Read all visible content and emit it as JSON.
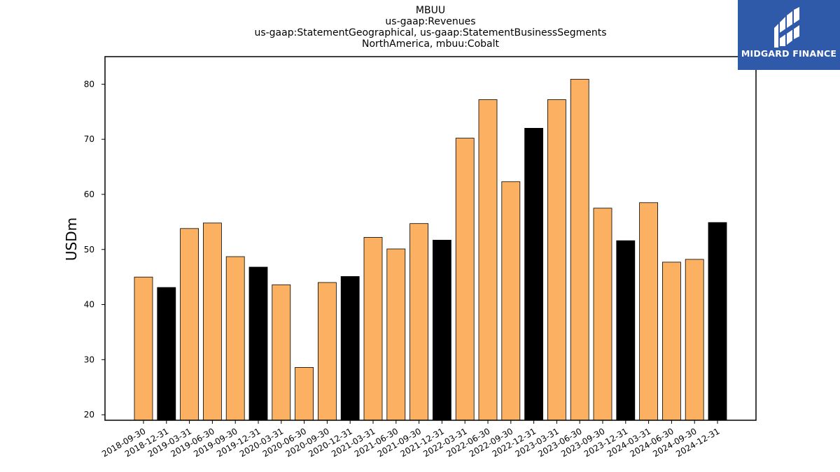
{
  "chart_data": {
    "type": "bar",
    "title_lines": [
      "MBUU",
      "us-gaap:Revenues",
      "us-gaap:StatementGeographical, us-gaap:StatementBusinessSegments",
      "NorthAmerica, mbuu:Cobalt"
    ],
    "ylabel": "USDm",
    "xlabel": "",
    "ylim": [
      19,
      85
    ],
    "yticks": [
      20,
      30,
      40,
      50,
      60,
      70,
      80
    ],
    "categories": [
      "2018-09-30",
      "2018-12-31",
      "2019-03-31",
      "2019-06-30",
      "2019-09-30",
      "2019-12-31",
      "2020-03-31",
      "2020-06-30",
      "2020-09-30",
      "2020-12-31",
      "2021-03-31",
      "2021-06-30",
      "2021-09-30",
      "2021-12-31",
      "2022-03-31",
      "2022-06-30",
      "2022-09-30",
      "2022-12-31",
      "2023-03-31",
      "2023-06-30",
      "2023-09-30",
      "2023-12-31",
      "2024-03-31",
      "2024-06-30",
      "2024-09-30",
      "2024-12-31"
    ],
    "values": [
      45.0,
      43.1,
      53.8,
      54.8,
      48.7,
      46.8,
      43.6,
      28.6,
      44.0,
      45.1,
      52.2,
      50.1,
      54.7,
      51.7,
      70.2,
      77.2,
      62.3,
      72.0,
      77.2,
      80.9,
      57.5,
      51.6,
      58.5,
      47.7,
      48.2,
      54.9
    ],
    "bar_colors": [
      "#fbb161",
      "#000000",
      "#fbb161",
      "#fbb161",
      "#fbb161",
      "#000000",
      "#fbb161",
      "#fbb161",
      "#fbb161",
      "#000000",
      "#fbb161",
      "#fbb161",
      "#fbb161",
      "#000000",
      "#fbb161",
      "#fbb161",
      "#fbb161",
      "#000000",
      "#fbb161",
      "#fbb161",
      "#fbb161",
      "#000000",
      "#fbb161",
      "#fbb161",
      "#fbb161",
      "#000000"
    ],
    "grid": false
  },
  "logo": {
    "text": "MIDGARD FINANCE",
    "background": "#2f5aa9",
    "icon": "midgard-logo-icon"
  }
}
